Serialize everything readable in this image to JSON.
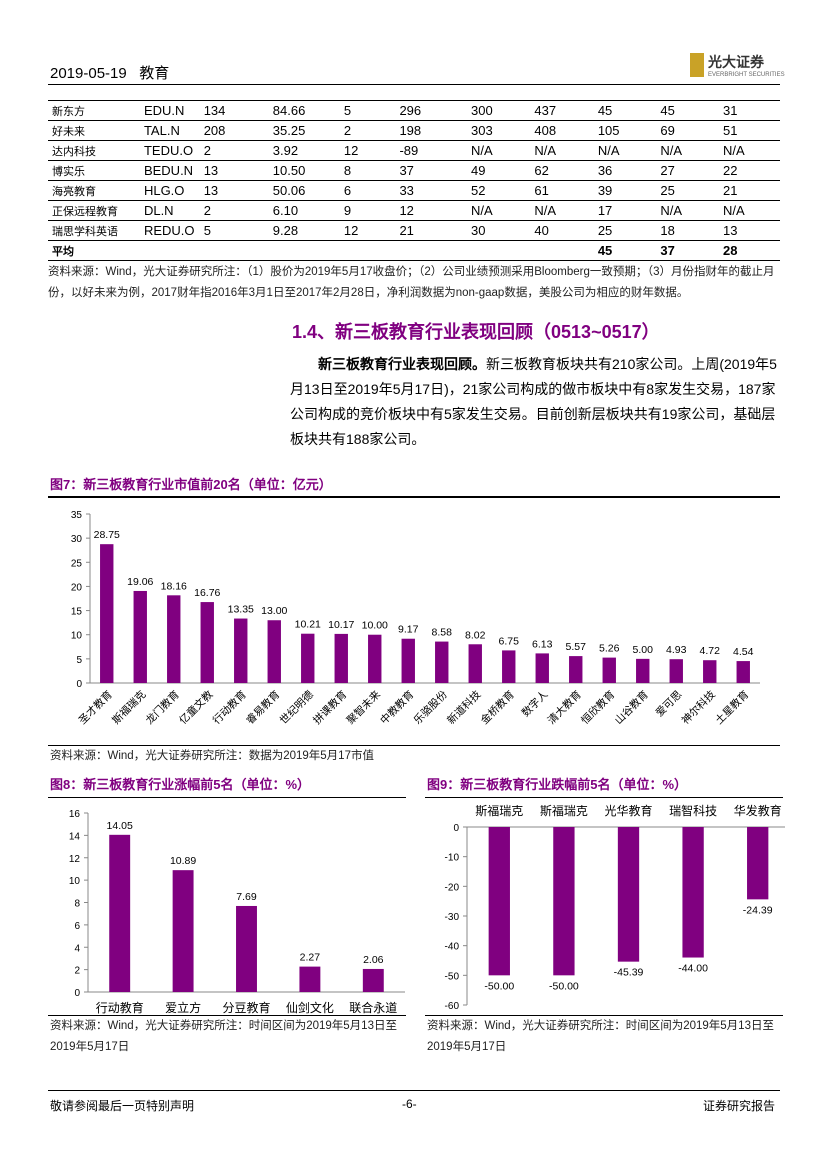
{
  "header": {
    "date": "2019-05-19",
    "sector": "教育",
    "logo_text": "光大证券",
    "logo_sub": "EVERBRIGHT SECURITIES"
  },
  "table": {
    "rows": [
      [
        "新东方",
        "EDU.N",
        "134",
        "84.66",
        "5",
        "296",
        "300",
        "437",
        "45",
        "45",
        "31"
      ],
      [
        "好未来",
        "TAL.N",
        "208",
        "35.25",
        "2",
        "198",
        "303",
        "408",
        "105",
        "69",
        "51"
      ],
      [
        "达内科技",
        "TEDU.O",
        "2",
        "3.92",
        "12",
        "-89",
        "N/A",
        "N/A",
        "N/A",
        "N/A",
        "N/A"
      ],
      [
        "博实乐",
        "BEDU.N",
        "13",
        "10.50",
        "8",
        "37",
        "49",
        "62",
        "36",
        "27",
        "22"
      ],
      [
        "海亮教育",
        "HLG.O",
        "13",
        "50.06",
        "6",
        "33",
        "52",
        "61",
        "39",
        "25",
        "21"
      ],
      [
        "正保远程教育",
        "DL.N",
        "2",
        "6.10",
        "9",
        "12",
        "N/A",
        "N/A",
        "17",
        "N/A",
        "N/A"
      ],
      [
        "瑞思学科英语",
        "REDU.O",
        "5",
        "9.28",
        "12",
        "21",
        "30",
        "40",
        "25",
        "18",
        "13"
      ]
    ],
    "avg": {
      "label": "平均",
      "v1": "45",
      "v2": "37",
      "v3": "28"
    }
  },
  "table_note": "资料来源：Wind，光大证券研究所注：（1）股价为2019年5月17收盘价；（2）公司业绩预测采用Bloomberg一致预期；（3）月份指财年的截止月份，以好未来为例，2017财年指2016年3月1日至2017年2月28日，净利润数据为non-gaap数据，美股公司为相应的财年数据。",
  "section": {
    "title": "1.4、新三板教育行业表现回顾（0513~0517）",
    "lead": "新三板教育行业表现回顾。",
    "body": "新三板教育板块共有210家公司。上周(2019年5月13日至2019年5月17日)，21家公司构成的做市板块中有8家发生交易，187家公司构成的竞价板块中有5家发生交易。目前创新层板块共有19家公司，基础层板块共有188家公司。"
  },
  "colors": {
    "accent": "#800080"
  },
  "chart_data": [
    {
      "type": "bar",
      "title": "图7：新三板教育行业市值前20名（单位：亿元）",
      "ylim": [
        0,
        35
      ],
      "yticks": [
        0,
        5,
        10,
        15,
        20,
        25,
        30,
        35
      ],
      "categories": [
        "圣才教育",
        "斯福瑞克",
        "龙门教育",
        "亿童文教",
        "行动教育",
        "睿易教育",
        "世纪明德",
        "拼课教育",
        "聚智未来",
        "中教教育",
        "乐骆股份",
        "新道科技",
        "金桥教育",
        "数字人",
        "清大教育",
        "恒欣教育",
        "山谷教育",
        "爱可思",
        "神尔科技",
        "土星教育"
      ],
      "values": [
        28.75,
        19.06,
        18.16,
        16.76,
        13.35,
        13.0,
        10.21,
        10.17,
        10.0,
        9.17,
        8.58,
        8.02,
        6.75,
        6.13,
        5.57,
        5.26,
        5.0,
        4.93,
        4.72,
        4.54
      ],
      "source": "资料来源：Wind，光大证券研究所注：数据为2019年5月17市值"
    },
    {
      "type": "bar",
      "title": "图8：新三板教育行业涨幅前5名（单位：%）",
      "ylim": [
        0,
        16
      ],
      "yticks": [
        0,
        2,
        4,
        6,
        8,
        10,
        12,
        14,
        16
      ],
      "categories": [
        "行动教育",
        "爱立方",
        "分豆教育",
        "仙剑文化",
        "联合永道"
      ],
      "values": [
        14.05,
        10.89,
        7.69,
        2.27,
        2.06
      ],
      "source": "资料来源：Wind，光大证券研究所注：时间区间为2019年5月13日至2019年5月17日"
    },
    {
      "type": "bar",
      "title": "图9：新三板教育行业跌幅前5名（单位：%）",
      "ylim": [
        -60,
        0
      ],
      "yticks": [
        0,
        -10,
        -20,
        -30,
        -40,
        -50,
        -60
      ],
      "categories": [
        "斯福瑞克",
        "斯福瑞克",
        "光华教育",
        "瑞智科技",
        "华发教育"
      ],
      "values": [
        -50.0,
        -50.0,
        -45.39,
        -44.0,
        -24.39
      ],
      "source": "资料来源：Wind，光大证券研究所注：时间区间为2019年5月13日至2019年5月17日"
    }
  ],
  "footer": {
    "left": "敬请参阅最后一页特别声明",
    "center": "-6-",
    "right": "证券研究报告"
  }
}
